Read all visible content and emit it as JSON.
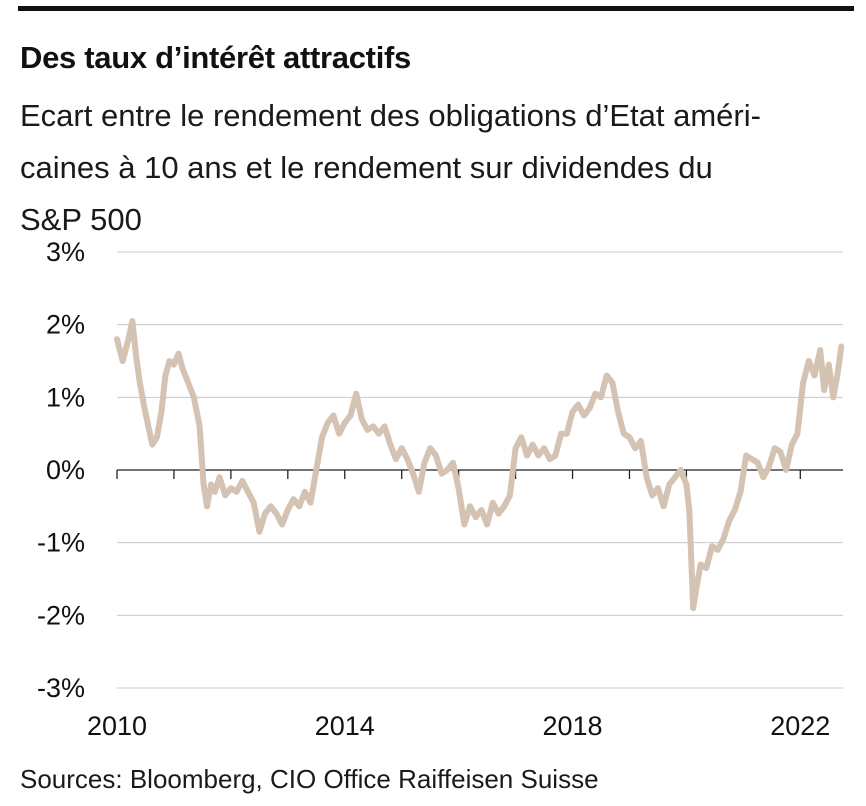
{
  "header": {
    "title": "Des taux d’intérêt attractifs",
    "subtitle_lines": [
      "Ecart entre le rendement des obligations d’Etat améri-",
      "caines à 10 ans et le rendement sur dividendes du",
      "S&P 500"
    ]
  },
  "footer": {
    "source": "Sources: Bloomberg, CIO Office Raiffeisen Suisse"
  },
  "chart_data": {
    "type": "line",
    "title": "Des taux d’intérêt attractifs",
    "subtitle": "Ecart entre le rendement des obligations d’Etat américaines à 10 ans et le rendement sur dividendes du S&P 500",
    "xlabel": "",
    "ylabel": "",
    "xlim": [
      2010,
      2022.75
    ],
    "ylim": [
      -3,
      3
    ],
    "x_ticks": [
      2010,
      2014,
      2018,
      2022
    ],
    "x_tick_labels": [
      "2010",
      "2014",
      "2018",
      "2022"
    ],
    "y_ticks": [
      3,
      2,
      1,
      0,
      -1,
      -2,
      -3
    ],
    "y_tick_labels": [
      "3%",
      "2%",
      "1%",
      "0%",
      "-1%",
      "-2%",
      "-3%"
    ],
    "grid": "horizontal",
    "legend": "none",
    "line_color": "#d4c2b2",
    "series": [
      {
        "x": [
          2010.0,
          2010.1,
          2010.2,
          2010.27,
          2010.33,
          2010.4,
          2010.47,
          2010.55,
          2010.62,
          2010.7,
          2010.78,
          2010.85,
          2010.92,
          2011.0,
          2011.08,
          2011.15,
          2011.25,
          2011.35,
          2011.45,
          2011.52,
          2011.58,
          2011.65,
          2011.72,
          2011.8,
          2011.9,
          2012.0,
          2012.1,
          2012.2,
          2012.3,
          2012.4,
          2012.5,
          2012.6,
          2012.7,
          2012.8,
          2012.9,
          2013.0,
          2013.1,
          2013.2,
          2013.3,
          2013.4,
          2013.5,
          2013.6,
          2013.7,
          2013.8,
          2013.9,
          2014.0,
          2014.1,
          2014.2,
          2014.3,
          2014.4,
          2014.5,
          2014.6,
          2014.7,
          2014.8,
          2014.9,
          2015.0,
          2015.1,
          2015.2,
          2015.3,
          2015.4,
          2015.5,
          2015.6,
          2015.7,
          2015.8,
          2015.9,
          2016.0,
          2016.1,
          2016.2,
          2016.3,
          2016.4,
          2016.5,
          2016.6,
          2016.7,
          2016.8,
          2016.9,
          2017.0,
          2017.1,
          2017.2,
          2017.3,
          2017.4,
          2017.5,
          2017.6,
          2017.7,
          2017.8,
          2017.9,
          2018.0,
          2018.1,
          2018.2,
          2018.3,
          2018.4,
          2018.5,
          2018.6,
          2018.7,
          2018.8,
          2018.9,
          2019.0,
          2019.1,
          2019.2,
          2019.3,
          2019.4,
          2019.5,
          2019.6,
          2019.7,
          2019.8,
          2019.9,
          2020.0,
          2020.05,
          2020.12,
          2020.18,
          2020.25,
          2020.35,
          2020.45,
          2020.55,
          2020.65,
          2020.75,
          2020.85,
          2020.95,
          2021.05,
          2021.15,
          2021.25,
          2021.35,
          2021.45,
          2021.55,
          2021.65,
          2021.75,
          2021.85,
          2021.95,
          2022.05,
          2022.15,
          2022.25,
          2022.35,
          2022.42,
          2022.5,
          2022.58,
          2022.65,
          2022.72
        ],
        "y": [
          1.8,
          1.5,
          1.8,
          2.05,
          1.6,
          1.2,
          0.9,
          0.6,
          0.35,
          0.45,
          0.8,
          1.3,
          1.5,
          1.45,
          1.6,
          1.4,
          1.2,
          1.0,
          0.6,
          -0.2,
          -0.5,
          -0.2,
          -0.3,
          -0.1,
          -0.35,
          -0.25,
          -0.3,
          -0.15,
          -0.3,
          -0.45,
          -0.85,
          -0.6,
          -0.5,
          -0.6,
          -0.75,
          -0.55,
          -0.4,
          -0.5,
          -0.3,
          -0.45,
          0.0,
          0.45,
          0.65,
          0.75,
          0.5,
          0.65,
          0.75,
          1.05,
          0.7,
          0.55,
          0.6,
          0.5,
          0.6,
          0.35,
          0.15,
          0.3,
          0.15,
          -0.05,
          -0.3,
          0.1,
          0.3,
          0.2,
          -0.05,
          0.0,
          0.1,
          -0.25,
          -0.75,
          -0.5,
          -0.65,
          -0.55,
          -0.75,
          -0.45,
          -0.6,
          -0.5,
          -0.35,
          0.3,
          0.45,
          0.2,
          0.35,
          0.2,
          0.3,
          0.15,
          0.2,
          0.5,
          0.5,
          0.8,
          0.9,
          0.75,
          0.85,
          1.05,
          1.0,
          1.3,
          1.2,
          0.8,
          0.5,
          0.45,
          0.3,
          0.4,
          -0.1,
          -0.35,
          -0.25,
          -0.5,
          -0.2,
          -0.1,
          0.0,
          -0.2,
          -0.55,
          -1.9,
          -1.6,
          -1.3,
          -1.35,
          -1.05,
          -1.1,
          -0.95,
          -0.7,
          -0.55,
          -0.3,
          0.2,
          0.15,
          0.1,
          -0.1,
          0.05,
          0.3,
          0.25,
          0.0,
          0.35,
          0.5,
          1.2,
          1.5,
          1.3,
          1.65,
          1.1,
          1.45,
          1.0,
          1.3,
          1.7
        ]
      }
    ]
  }
}
